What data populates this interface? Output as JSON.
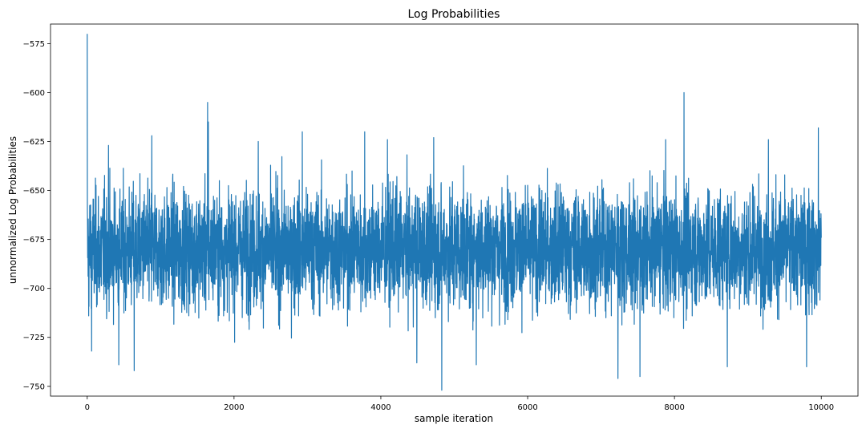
{
  "chart_data": {
    "type": "line",
    "title": "Log Probabilities",
    "xlabel": "sample iteration",
    "ylabel": "unnormalized Log Probabilities",
    "xlim": [
      -500,
      10500
    ],
    "ylim": [
      -755,
      -565
    ],
    "x_ticks": [
      0,
      2000,
      4000,
      6000,
      8000,
      10000
    ],
    "x_tick_labels": [
      "0",
      "2000",
      "4000",
      "6000",
      "8000",
      "10000"
    ],
    "y_ticks": [
      -575,
      -600,
      -625,
      -650,
      -675,
      -700,
      -725,
      -750
    ],
    "y_tick_labels": [
      "−575",
      "−600",
      "−625",
      "−650",
      "−675",
      "−700",
      "−725",
      "−750"
    ],
    "grid": false,
    "series": [
      {
        "color": "#1f77b4",
        "x_range": [
          0,
          10000
        ],
        "n_points": 10001,
        "band_center": -680,
        "typical_range": [
          -720,
          -645
        ],
        "min": -752,
        "max": -570,
        "notable_points": [
          {
            "x": 0,
            "y": -570
          },
          {
            "x": 20,
            "y": -714
          },
          {
            "x": 60,
            "y": -732
          },
          {
            "x": 290,
            "y": -627
          },
          {
            "x": 430,
            "y": -739
          },
          {
            "x": 640,
            "y": -742
          },
          {
            "x": 880,
            "y": -622
          },
          {
            "x": 1640,
            "y": -605
          },
          {
            "x": 1650,
            "y": -615
          },
          {
            "x": 2330,
            "y": -625
          },
          {
            "x": 2930,
            "y": -620
          },
          {
            "x": 3780,
            "y": -620
          },
          {
            "x": 4090,
            "y": -624
          },
          {
            "x": 4490,
            "y": -738
          },
          {
            "x": 4720,
            "y": -623
          },
          {
            "x": 4830,
            "y": -752
          },
          {
            "x": 5300,
            "y": -739
          },
          {
            "x": 7230,
            "y": -746
          },
          {
            "x": 7530,
            "y": -745
          },
          {
            "x": 7880,
            "y": -624
          },
          {
            "x": 8130,
            "y": -600
          },
          {
            "x": 8720,
            "y": -740
          },
          {
            "x": 9280,
            "y": -624
          },
          {
            "x": 9800,
            "y": -740
          },
          {
            "x": 9960,
            "y": -618
          }
        ]
      }
    ]
  }
}
